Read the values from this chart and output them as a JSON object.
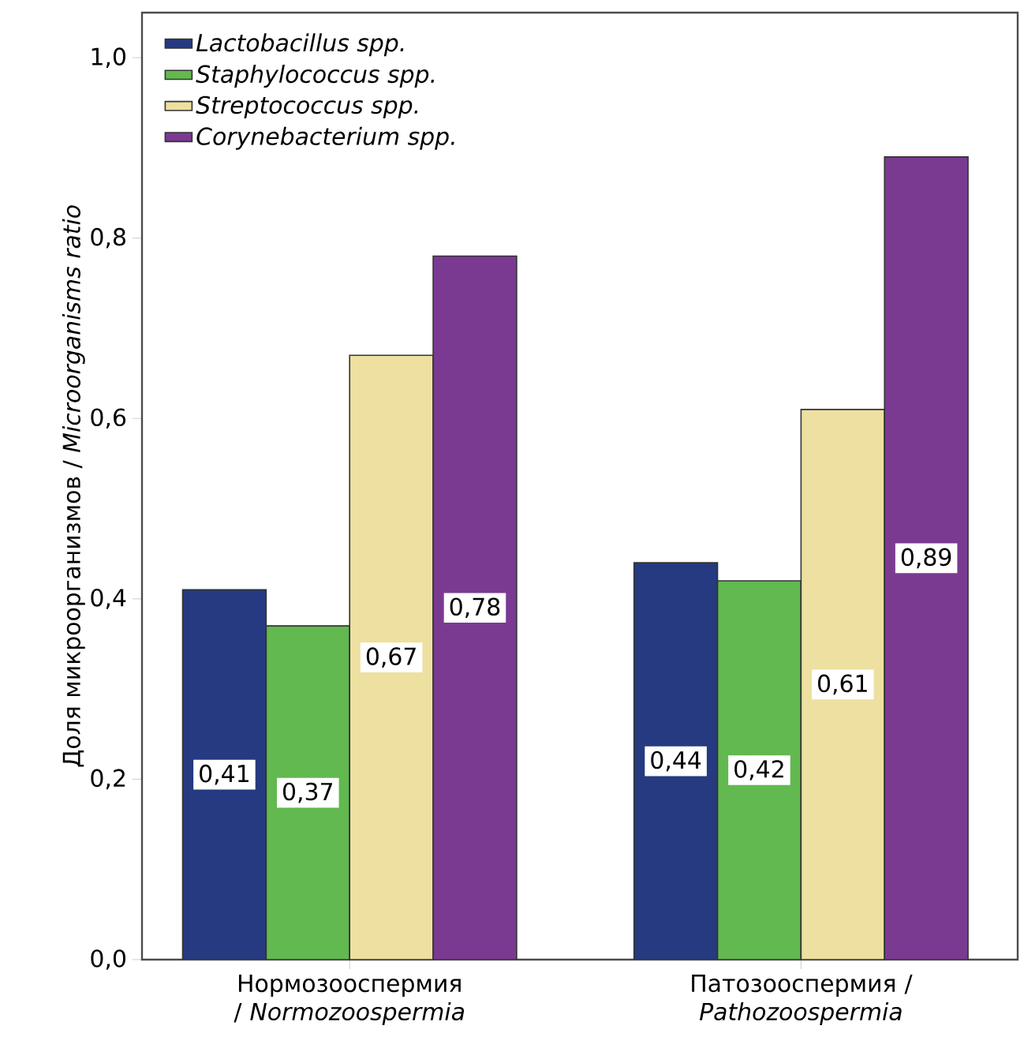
{
  "chart_data": {
    "type": "bar",
    "ylabel": "Доля микроорганизмов / *Microorganisms ratio*",
    "categories": [
      "Нормозооспермия / *Normozoospermia*",
      "Патозооспермия / *Pathozoospermia*"
    ],
    "series": [
      {
        "name": "Lactobacillus spp.",
        "color": "#253a80",
        "values": [
          0.41,
          0.44
        ],
        "value_labels": [
          "0,41",
          "0,44"
        ]
      },
      {
        "name": "Staphylococcus spp.",
        "color": "#62b94f",
        "values": [
          0.37,
          0.42
        ],
        "value_labels": [
          "0,37",
          "0,42"
        ]
      },
      {
        "name": "Streptococcus spp.",
        "color": "#ede0a0",
        "values": [
          0.67,
          0.61
        ],
        "value_labels": [
          "0,67",
          "0,61"
        ]
      },
      {
        "name": "Corynebacterium spp.",
        "color": "#7b3a91",
        "values": [
          0.78,
          0.89
        ],
        "value_labels": [
          "0,78",
          "0,89"
        ]
      }
    ],
    "ylim": [
      0,
      1.05
    ],
    "yticks": [
      {
        "value": 0,
        "label": "0,0"
      },
      {
        "value": 0.2,
        "label": "0,2"
      },
      {
        "value": 0.4,
        "label": "0,4"
      },
      {
        "value": 0.6,
        "label": "0,6"
      },
      {
        "value": 0.8,
        "label": "0,8"
      },
      {
        "value": 1.0,
        "label": "1,0"
      }
    ],
    "grid": false,
    "legend": "top left"
  }
}
